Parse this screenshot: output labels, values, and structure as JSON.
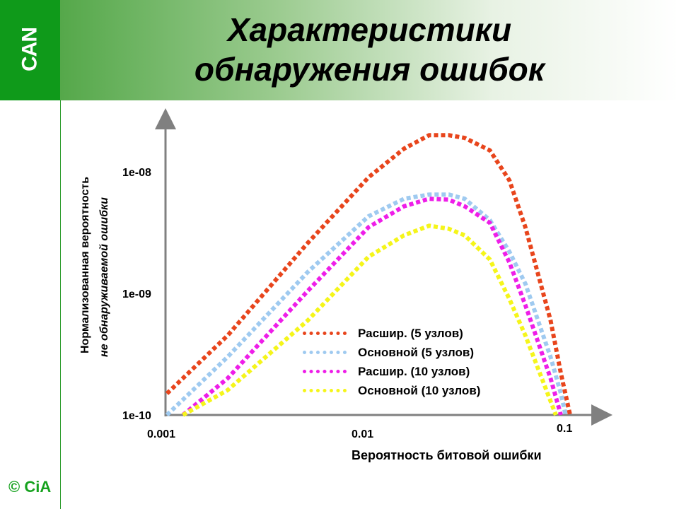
{
  "slide": {
    "title_line1": "Характеристики",
    "title_line2": "обнаружения ошибок",
    "logo_top": "CAN",
    "logo_bottom": "© CiA"
  },
  "colors": {
    "sidebar_green": "#0f9a1a",
    "series": [
      "#e8451c",
      "#9fcaf0",
      "#ee1ee8",
      "#f5f51a"
    ]
  },
  "chart_data": {
    "type": "line",
    "xlabel": "Вероятность битовой ошибки",
    "ylabel_line1": "Нормализованная вероятность",
    "ylabel_line2": "не обнаруживаемой ошибки",
    "xscale": "log",
    "yscale": "log",
    "xlim": [
      0.001,
      0.1
    ],
    "ylim": [
      1e-10,
      3.5e-08
    ],
    "x_ticks": [
      {
        "value": 0.001,
        "label": "0.001"
      },
      {
        "value": 0.01,
        "label": "0.01"
      },
      {
        "value": 0.1,
        "label": "0.1"
      }
    ],
    "y_ticks": [
      {
        "value": 1e-10,
        "label": "1e-10"
      },
      {
        "value": 1e-09,
        "label": "1e-09"
      },
      {
        "value": 1e-08,
        "label": "1e-08"
      }
    ],
    "legend_position": "center",
    "series": [
      {
        "name": "Расшир. (5 узлов)",
        "x": [
          0.001,
          0.002,
          0.005,
          0.01,
          0.015,
          0.02,
          0.025,
          0.03,
          0.04,
          0.05,
          0.06,
          0.08,
          0.09,
          0.1
        ],
        "y": [
          1.5e-10,
          4.5e-10,
          2.6e-09,
          9e-09,
          1.55e-08,
          2e-08,
          2e-08,
          1.9e-08,
          1.5e-08,
          8.5e-09,
          3.5e-09,
          6e-10,
          2.2e-10,
          1e-10
        ]
      },
      {
        "name": "Основной (5 узлов)",
        "x": [
          0.001,
          0.002,
          0.005,
          0.01,
          0.015,
          0.02,
          0.025,
          0.03,
          0.04,
          0.05,
          0.06,
          0.08,
          0.09,
          0.095
        ],
        "y": [
          1e-10,
          3e-10,
          1.5e-09,
          4.3e-09,
          6e-09,
          6.5e-09,
          6.5e-09,
          6e-09,
          4e-09,
          2.2e-09,
          1.2e-09,
          3e-10,
          1.5e-10,
          1e-10
        ]
      },
      {
        "name": "Расшир. (10 узлов)",
        "x": [
          0.0012,
          0.002,
          0.005,
          0.01,
          0.015,
          0.02,
          0.025,
          0.03,
          0.04,
          0.05,
          0.06,
          0.08,
          0.09
        ],
        "y": [
          1e-10,
          2e-10,
          1.05e-09,
          3.5e-09,
          5.2e-09,
          6e-09,
          5.9e-09,
          5.2e-09,
          3.8e-09,
          1.8e-09,
          8e-10,
          2e-10,
          1e-10
        ]
      },
      {
        "name": "Основной (10 узлов)",
        "x": [
          0.0012,
          0.002,
          0.005,
          0.01,
          0.015,
          0.02,
          0.025,
          0.03,
          0.04,
          0.05,
          0.06,
          0.08,
          0.085
        ],
        "y": [
          1e-10,
          1.6e-10,
          6e-10,
          2e-09,
          3e-09,
          3.6e-09,
          3.4e-09,
          3e-09,
          1.9e-09,
          9e-10,
          4.5e-10,
          1.3e-10,
          1e-10
        ]
      }
    ]
  }
}
